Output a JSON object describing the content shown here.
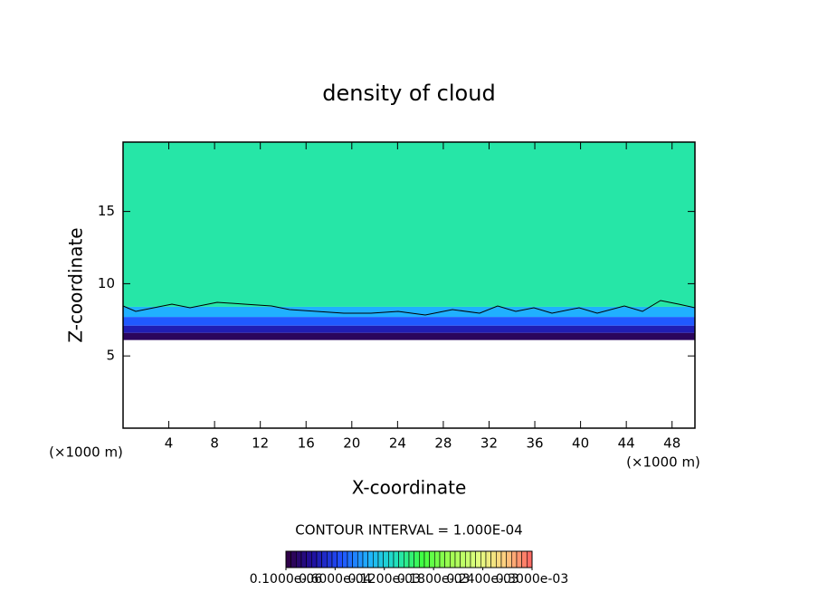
{
  "chart_data": {
    "type": "heatmap",
    "title": "density of cloud",
    "x_label": "X-coordinate",
    "y_label": "Z-coordinate",
    "x_unit_left": "(×1000 m)",
    "x_unit_right": "(×1000 m)",
    "contour_note": "CONTOUR INTERVAL = 1.000E-04",
    "xlim": [
      0,
      50
    ],
    "xticks": [
      4,
      8,
      12,
      16,
      20,
      24,
      28,
      32,
      36,
      40,
      44,
      48
    ],
    "ylim": [
      0,
      19.8
    ],
    "yticks": [
      5,
      10,
      15
    ],
    "z_bins": [
      6.1,
      6.6,
      7.1,
      7.7,
      8.4,
      19.8
    ],
    "values": [
      1e-05,
      4e-05,
      7e-05,
      0.0001,
      0.00014
    ],
    "clim": [
      1e-07,
      0.0003
    ],
    "colors": [
      "#300040",
      "#2010a0",
      "#2050ff",
      "#20b0ff",
      "#20e0c0",
      "#40ff40",
      "#a0ff50",
      "#e0ff80",
      "#ffd080",
      "#ff6060"
    ],
    "colorbar_ticks": [
      {
        "value": 1e-07,
        "label": "0.1000e-06"
      },
      {
        "value": 6e-05,
        "label": "0.6000e-04"
      },
      {
        "value": 0.00012,
        "label": "0.1200e-03"
      },
      {
        "value": 0.00018,
        "label": "0.1800e-03"
      },
      {
        "value": 0.00024,
        "label": "0.2400e-03"
      },
      {
        "value": 0.0003,
        "label": "0.3000e-03"
      }
    ]
  }
}
